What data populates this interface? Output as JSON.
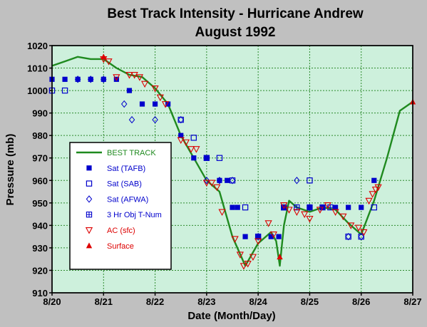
{
  "chart_data": {
    "type": "scatter",
    "title": "Best Track Intensity - Hurricane Andrew",
    "subtitle": "August 1992",
    "xlabel": "Date (Month/Day)",
    "ylabel": "Pressure (mb)",
    "x_unit": "days (August 1992)",
    "xlim": [
      20,
      27
    ],
    "ylim": [
      910,
      1020
    ],
    "x_ticks": [
      {
        "value": 20,
        "label": "8/20"
      },
      {
        "value": 21,
        "label": "8/21"
      },
      {
        "value": 22,
        "label": "8/22"
      },
      {
        "value": 23,
        "label": "8/23"
      },
      {
        "value": 24,
        "label": "8/24"
      },
      {
        "value": 25,
        "label": "8/25"
      },
      {
        "value": 26,
        "label": "8/26"
      },
      {
        "value": 27,
        "label": "8/27"
      }
    ],
    "y_ticks": [
      910,
      920,
      930,
      940,
      950,
      960,
      970,
      980,
      990,
      1000,
      1010,
      1020
    ],
    "grid": true,
    "legend_position": "center-left",
    "colors": {
      "plot_background": "#cdf0dc",
      "grid": "#2e8b2e",
      "best_track": "#1f8a1f",
      "blue": "#0000cc",
      "red": "#dd0000",
      "page_background": "#c0c0c0"
    },
    "series": [
      {
        "name": "BEST TRACK",
        "marker": "line",
        "color": "#1f8a1f",
        "points": [
          [
            20.0,
            1011
          ],
          [
            20.25,
            1013
          ],
          [
            20.5,
            1015
          ],
          [
            20.75,
            1014
          ],
          [
            21.0,
            1014
          ],
          [
            21.25,
            1010
          ],
          [
            21.5,
            1007
          ],
          [
            21.75,
            1006
          ],
          [
            22.0,
            1001
          ],
          [
            22.25,
            994
          ],
          [
            22.5,
            980
          ],
          [
            22.75,
            970
          ],
          [
            23.0,
            960
          ],
          [
            23.25,
            955
          ],
          [
            23.5,
            935
          ],
          [
            23.75,
            922
          ],
          [
            24.0,
            932
          ],
          [
            24.25,
            937
          ],
          [
            24.35,
            933
          ],
          [
            24.42,
            922
          ],
          [
            24.5,
            940
          ],
          [
            24.6,
            951
          ],
          [
            24.75,
            948
          ],
          [
            25.0,
            946
          ],
          [
            25.25,
            948
          ],
          [
            25.5,
            947
          ],
          [
            25.75,
            941
          ],
          [
            26.0,
            936
          ],
          [
            26.25,
            951
          ],
          [
            26.5,
            970
          ],
          [
            26.75,
            991
          ],
          [
            27.0,
            995
          ]
        ]
      },
      {
        "name": "Sat (TAFB)",
        "marker": "filled-square",
        "color": "#0000cc",
        "points": [
          [
            20.0,
            1005
          ],
          [
            20.25,
            1005
          ],
          [
            20.5,
            1005
          ],
          [
            20.75,
            1005
          ],
          [
            21.0,
            1005
          ],
          [
            21.25,
            1005
          ],
          [
            21.5,
            1000
          ],
          [
            21.75,
            994
          ],
          [
            22.0,
            994
          ],
          [
            22.25,
            994
          ],
          [
            22.5,
            980
          ],
          [
            22.75,
            970
          ],
          [
            23.0,
            970
          ],
          [
            23.25,
            960
          ],
          [
            23.4,
            960
          ],
          [
            23.5,
            948
          ],
          [
            23.6,
            948
          ],
          [
            23.75,
            935
          ],
          [
            24.0,
            935
          ],
          [
            24.25,
            935
          ],
          [
            24.4,
            935
          ],
          [
            24.5,
            948
          ],
          [
            25.0,
            948
          ],
          [
            25.25,
            948
          ],
          [
            25.5,
            948
          ],
          [
            25.75,
            948
          ],
          [
            26.0,
            948
          ],
          [
            26.25,
            960
          ]
        ]
      },
      {
        "name": "Sat (SAB)",
        "marker": "open-square",
        "color": "#0000cc",
        "points": [
          [
            20.0,
            1000
          ],
          [
            20.25,
            1000
          ],
          [
            22.5,
            987
          ],
          [
            22.75,
            979
          ],
          [
            23.0,
            970
          ],
          [
            23.25,
            970
          ],
          [
            23.5,
            960
          ],
          [
            23.75,
            948
          ],
          [
            24.0,
            935
          ],
          [
            24.5,
            948
          ],
          [
            25.0,
            960
          ],
          [
            25.75,
            935
          ],
          [
            26.0,
            935
          ],
          [
            26.25,
            948
          ]
        ]
      },
      {
        "name": "Sat (AFWA)",
        "marker": "open-diamond",
        "color": "#0000cc",
        "points": [
          [
            20.5,
            1005
          ],
          [
            20.75,
            1005
          ],
          [
            21.0,
            1005
          ],
          [
            21.4,
            994
          ],
          [
            21.55,
            987
          ],
          [
            22.0,
            987
          ],
          [
            22.5,
            987
          ],
          [
            23.0,
            960
          ],
          [
            23.25,
            960
          ],
          [
            23.5,
            960
          ],
          [
            24.0,
            935
          ],
          [
            24.75,
            960
          ],
          [
            25.0,
            948
          ],
          [
            25.75,
            935
          ],
          [
            26.0,
            935
          ]
        ]
      },
      {
        "name": "3 Hr Obj T-Num",
        "marker": "square-cross",
        "color": "#0000cc",
        "points": [
          [
            24.5,
            948
          ],
          [
            24.75,
            948
          ],
          [
            25.0,
            948
          ],
          [
            25.25,
            948
          ],
          [
            25.4,
            948
          ]
        ]
      },
      {
        "name": "AC (sfc)",
        "marker": "open-triangle-down",
        "color": "#dd0000",
        "points": [
          [
            21.0,
            1014
          ],
          [
            21.1,
            1013
          ],
          [
            21.25,
            1006
          ],
          [
            21.5,
            1007
          ],
          [
            21.6,
            1007
          ],
          [
            21.7,
            1006
          ],
          [
            21.8,
            1003
          ],
          [
            22.0,
            1001
          ],
          [
            22.1,
            997
          ],
          [
            22.2,
            994
          ],
          [
            22.5,
            978
          ],
          [
            22.6,
            977
          ],
          [
            22.7,
            974
          ],
          [
            22.8,
            974
          ],
          [
            23.0,
            959
          ],
          [
            23.1,
            959
          ],
          [
            23.2,
            957
          ],
          [
            23.3,
            946
          ],
          [
            23.55,
            934
          ],
          [
            23.65,
            927
          ],
          [
            23.72,
            922
          ],
          [
            23.8,
            923
          ],
          [
            23.9,
            926
          ],
          [
            24.0,
            933
          ],
          [
            24.2,
            941
          ],
          [
            24.3,
            936
          ],
          [
            24.5,
            949
          ],
          [
            24.6,
            947
          ],
          [
            24.75,
            946
          ],
          [
            24.9,
            945
          ],
          [
            25.0,
            943
          ],
          [
            25.2,
            947
          ],
          [
            25.35,
            949
          ],
          [
            25.5,
            946
          ],
          [
            25.65,
            944
          ],
          [
            25.8,
            940
          ],
          [
            25.95,
            939
          ],
          [
            26.05,
            937
          ],
          [
            26.15,
            951
          ],
          [
            26.22,
            954
          ],
          [
            26.28,
            956
          ],
          [
            26.33,
            957
          ]
        ]
      },
      {
        "name": "Surface",
        "marker": "filled-triangle-up",
        "color": "#dd0000",
        "points": [
          [
            21.0,
            1015
          ],
          [
            24.42,
            926
          ],
          [
            27.0,
            995
          ]
        ]
      }
    ]
  }
}
